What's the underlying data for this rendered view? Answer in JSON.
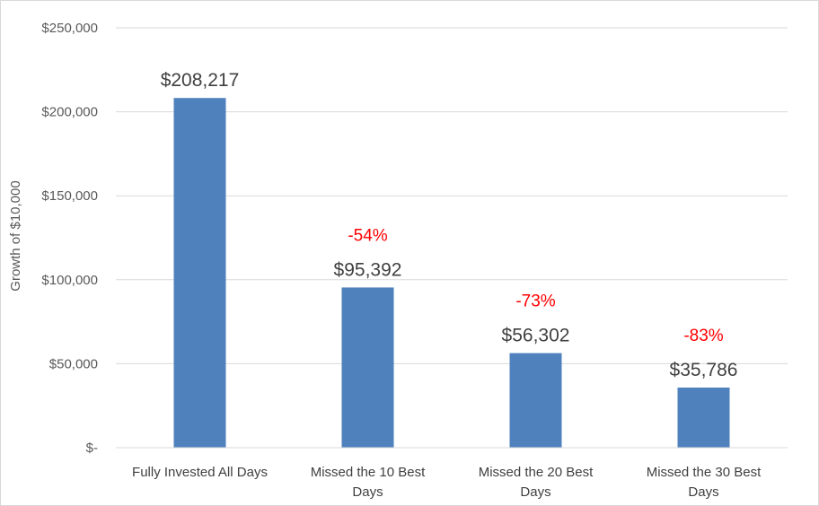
{
  "chart_data": {
    "type": "bar",
    "categories": [
      [
        "Fully Invested All Days"
      ],
      [
        "Missed the 10 Best",
        "Days"
      ],
      [
        "Missed the 20 Best",
        "Days"
      ],
      [
        "Missed the 30 Best",
        "Days"
      ]
    ],
    "values": [
      208217,
      95392,
      56302,
      35786
    ],
    "value_labels": [
      "$208,217",
      "$95,392",
      "$56,302",
      "$35,786"
    ],
    "change_labels": [
      "",
      "-54%",
      "-73%",
      "-83%"
    ],
    "ylabel": "Growth of $10,000",
    "ylim": [
      0,
      250000
    ],
    "yticks": [
      0,
      50000,
      100000,
      150000,
      200000,
      250000
    ],
    "ytick_labels": [
      "$-",
      "$50,000",
      "$100,000",
      "$150,000",
      "$200,000",
      "$250,000"
    ],
    "grid": true,
    "legend": "none",
    "colors": {
      "bar": "#4f81bd",
      "change": "#ff0000",
      "grid": "#d9d9d9"
    }
  }
}
